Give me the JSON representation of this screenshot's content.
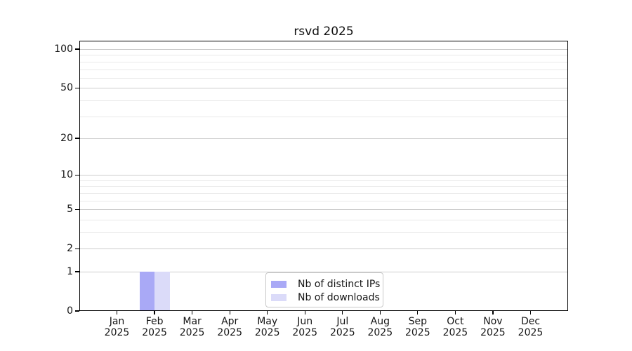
{
  "chart_data": {
    "type": "bar",
    "title": "rsvd 2025",
    "categories": [
      "Jan 2025",
      "Feb 2025",
      "Mar 2025",
      "Apr 2025",
      "May 2025",
      "Jun 2025",
      "Jul 2025",
      "Aug 2025",
      "Sep 2025",
      "Oct 2025",
      "Nov 2025",
      "Dec 2025"
    ],
    "series": [
      {
        "name": "Nb of distinct IPs",
        "color": "#a9a9f6",
        "values": [
          0,
          1,
          0,
          0,
          0,
          0,
          0,
          0,
          0,
          0,
          0,
          0
        ]
      },
      {
        "name": "Nb of downloads",
        "color": "#dbdbf9",
        "values": [
          0,
          1,
          0,
          0,
          0,
          0,
          0,
          0,
          0,
          0,
          0,
          0
        ]
      }
    ],
    "y_axis": {
      "scale": "log1p",
      "major_ticks": [
        0,
        1,
        2,
        5,
        10,
        20,
        50,
        100
      ],
      "minor_gridlines": [
        3,
        4,
        6,
        7,
        8,
        9,
        30,
        40,
        60,
        70,
        80,
        90
      ],
      "top_value": 113
    },
    "x_axis": {
      "tick_label_lines": 2
    },
    "legend": {
      "position": "lower-center",
      "entries": [
        "Nb of distinct IPs",
        "Nb of downloads"
      ]
    },
    "style": {
      "major_grid_color": "#cccccc",
      "minor_grid_color": "#e9e9e9",
      "spine_color": "#000000",
      "text_color": "#151515",
      "background": "#ffffff"
    }
  }
}
